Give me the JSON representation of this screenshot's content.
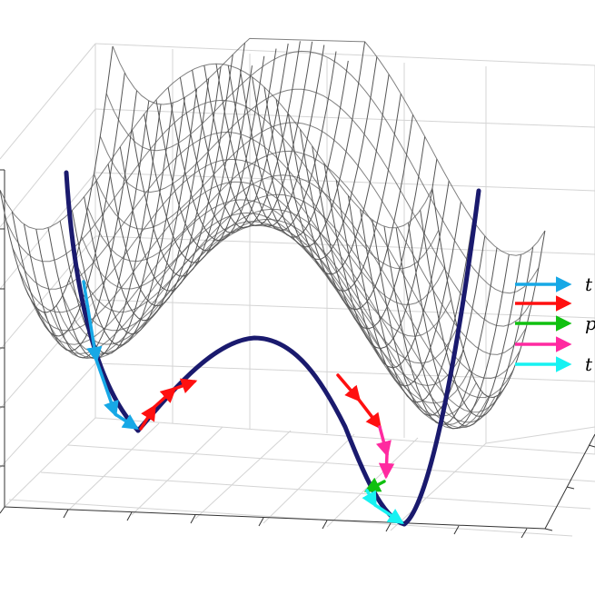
{
  "figure": {
    "background": "#ffffff",
    "surface_color": "#555555",
    "path_color": "#1a1a6e",
    "grid_color": "#d4d4d4",
    "axis_color": "#333333"
  },
  "legend": {
    "items": [
      {
        "label": "t",
        "color": "#17a8e6",
        "icon": "arrow-icon"
      },
      {
        "label": "",
        "color": "#ff1010",
        "icon": "arrow-icon"
      },
      {
        "label": "p",
        "color": "#10c010",
        "icon": "arrow-icon"
      },
      {
        "label": "",
        "color": "#ff2aa0",
        "icon": "arrow-icon"
      },
      {
        "label": "t",
        "color": "#17f2f2",
        "icon": "arrow-icon"
      }
    ]
  }
}
